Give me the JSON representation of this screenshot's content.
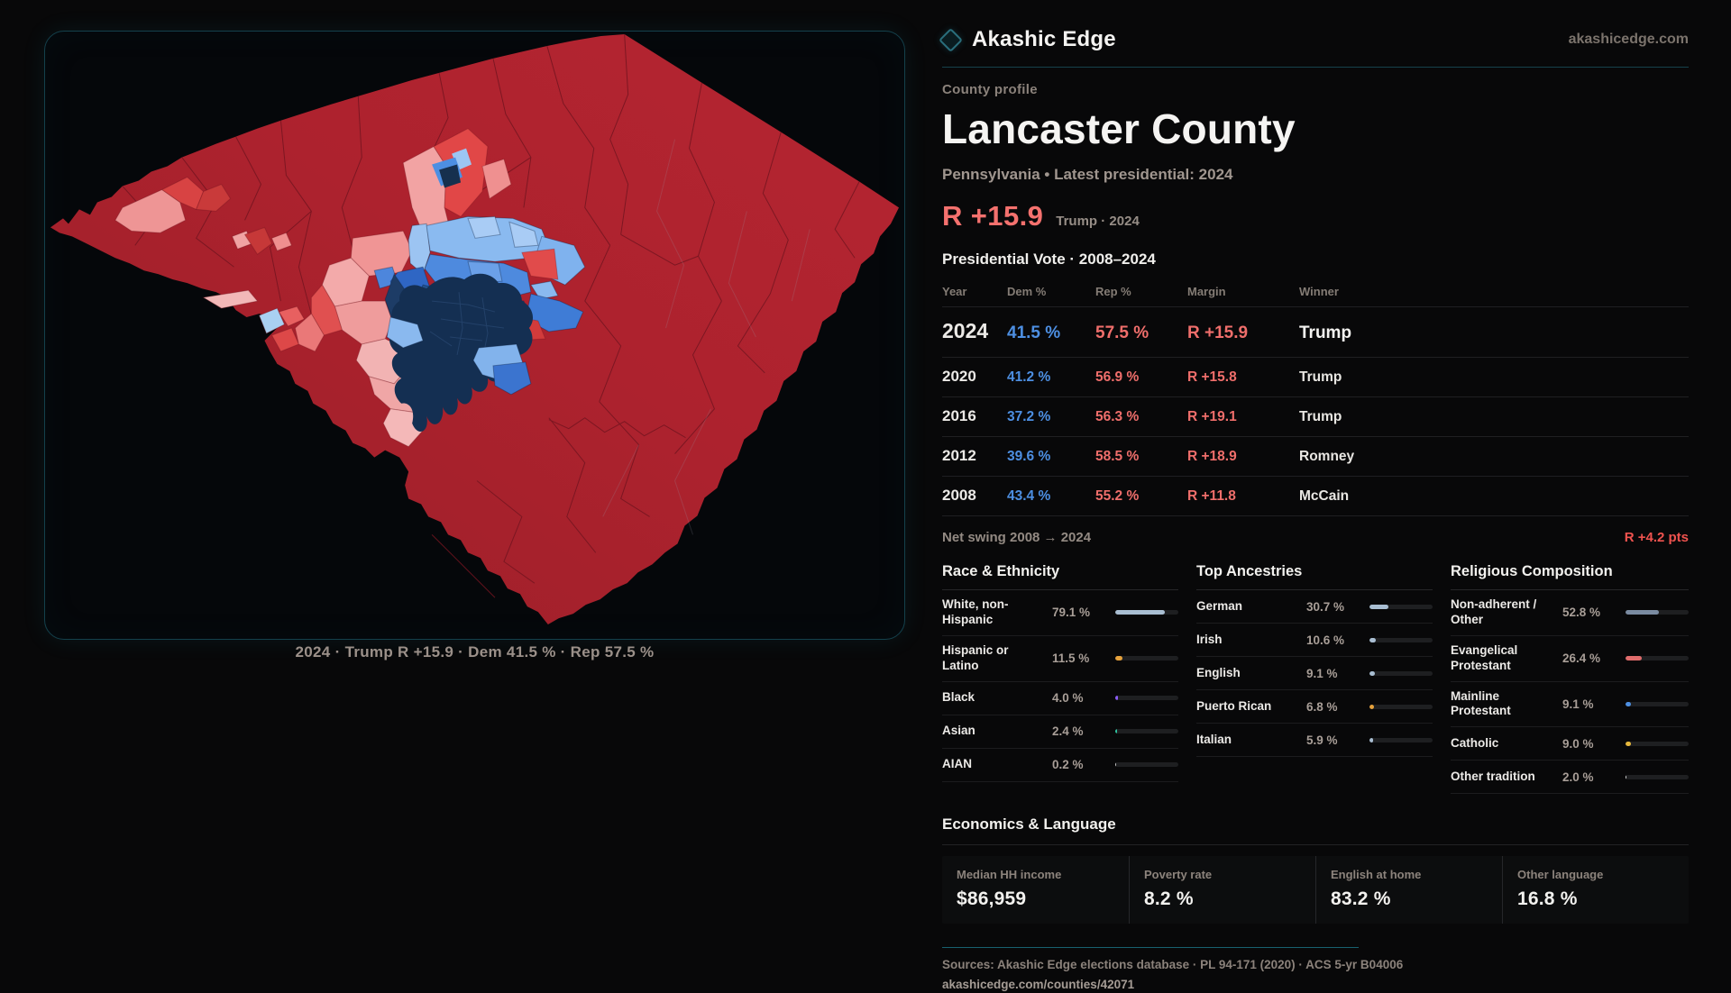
{
  "brand": {
    "name": "Akashic Edge",
    "site": "akashicedge.com"
  },
  "header": {
    "eyebrow": "County profile",
    "title": "Lancaster County",
    "subtitle": "Pennsylvania • Latest presidential: 2024"
  },
  "headline": {
    "margin": "R +15.9",
    "context": "Trump · 2024"
  },
  "vote_table": {
    "title": "Presidential Vote · 2008–2024",
    "columns": [
      "Year",
      "Dem %",
      "Rep %",
      "Margin",
      "Winner"
    ],
    "rows": [
      {
        "year": "2024",
        "dem": "41.5 %",
        "rep": "57.5 %",
        "margin": "R +15.9",
        "winner": "Trump",
        "emphasis": true
      },
      {
        "year": "2020",
        "dem": "41.2 %",
        "rep": "56.9 %",
        "margin": "R +15.8",
        "winner": "Trump",
        "emphasis": false
      },
      {
        "year": "2016",
        "dem": "37.2 %",
        "rep": "56.3 %",
        "margin": "R +19.1",
        "winner": "Trump",
        "emphasis": false
      },
      {
        "year": "2012",
        "dem": "39.6 %",
        "rep": "58.5 %",
        "margin": "R +18.9",
        "winner": "Romney",
        "emphasis": false
      },
      {
        "year": "2008",
        "dem": "43.4 %",
        "rep": "55.2 %",
        "margin": "R +11.8",
        "winner": "McCain",
        "emphasis": false
      }
    ],
    "net_swing_label": "Net swing 2008 → 2024",
    "net_swing_value": "R +4.2 pts"
  },
  "demographics": [
    {
      "title": "Race & Ethnicity",
      "rows": [
        {
          "label": "White, non-Hispanic",
          "value": "79.1 %",
          "pct": 79.1,
          "color": "#a9bed2"
        },
        {
          "label": "Hispanic or Latino",
          "value": "11.5 %",
          "pct": 11.5,
          "color": "#e6a23c"
        },
        {
          "label": "Black",
          "value": "4.0 %",
          "pct": 4.0,
          "color": "#8b5cf6"
        },
        {
          "label": "Asian",
          "value": "2.4 %",
          "pct": 2.4,
          "color": "#2ec4a0"
        },
        {
          "label": "AIAN",
          "value": "0.2 %",
          "pct": 0.2,
          "color": "#c9c9c9"
        }
      ]
    },
    {
      "title": "Top Ancestries",
      "rows": [
        {
          "label": "German",
          "value": "30.7 %",
          "pct": 30.7,
          "color": "#a9bed2"
        },
        {
          "label": "Irish",
          "value": "10.6 %",
          "pct": 10.6,
          "color": "#a9bed2"
        },
        {
          "label": "English",
          "value": "9.1 %",
          "pct": 9.1,
          "color": "#a9bed2"
        },
        {
          "label": "Puerto Rican",
          "value": "6.8 %",
          "pct": 6.8,
          "color": "#e6a23c"
        },
        {
          "label": "Italian",
          "value": "5.9 %",
          "pct": 5.9,
          "color": "#a9bed2"
        }
      ]
    },
    {
      "title": "Religious Composition",
      "rows": [
        {
          "label": "Non-adherent / Other",
          "value": "52.8 %",
          "pct": 52.8,
          "color": "#7a8ba1"
        },
        {
          "label": "Evangelical Protestant",
          "value": "26.4 %",
          "pct": 26.4,
          "color": "#e06c6c"
        },
        {
          "label": "Mainline Protestant",
          "value": "9.1 %",
          "pct": 9.1,
          "color": "#4d8fe2"
        },
        {
          "label": "Catholic",
          "value": "9.0 %",
          "pct": 9.0,
          "color": "#e6b83c"
        },
        {
          "label": "Other tradition",
          "value": "2.0 %",
          "pct": 2.0,
          "color": "#d8d8d8"
        }
      ]
    }
  ],
  "economics": {
    "title": "Economics & Language",
    "stats": [
      {
        "label": "Median HH income",
        "value": "$86,959"
      },
      {
        "label": "Poverty rate",
        "value": "8.2 %"
      },
      {
        "label": "English at home",
        "value": "83.2 %"
      },
      {
        "label": "Other language",
        "value": "16.8 %"
      }
    ]
  },
  "footer": {
    "sources": "Sources: Akashic Edge elections database · PL 94-171 (2020) · ACS 5-yr B04006",
    "permalink": "akashicedge.com/counties/42071"
  },
  "map": {
    "caption": "2024 · Trump R +15.9 · Dem 41.5 % · Rep 57.5 %"
  },
  "colors": {
    "dem_blue": "#4d8fe2",
    "rep_red": "#ef6e6b",
    "accent_teal": "#17606e"
  }
}
